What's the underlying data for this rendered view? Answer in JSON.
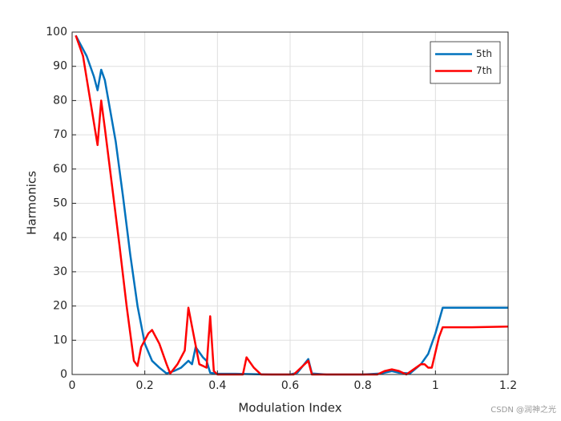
{
  "chart_data": {
    "type": "line",
    "xlabel": "Modulation Index",
    "ylabel": "Harmonics",
    "xlim": [
      0,
      1.2
    ],
    "ylim": [
      0,
      100
    ],
    "xticks": [
      0,
      0.2,
      0.4,
      0.6,
      0.8,
      1,
      1.2
    ],
    "yticks": [
      0,
      10,
      20,
      30,
      40,
      50,
      60,
      70,
      80,
      90,
      100
    ],
    "grid": true,
    "legend_position": "northeast",
    "watermark": "CSDN @润神之光",
    "series": [
      {
        "name": "5th",
        "color": "#0072BD",
        "x": [
          0.01,
          0.02,
          0.04,
          0.06,
          0.07,
          0.08,
          0.09,
          0.1,
          0.12,
          0.14,
          0.16,
          0.18,
          0.2,
          0.22,
          0.24,
          0.26,
          0.28,
          0.3,
          0.32,
          0.33,
          0.34,
          0.36,
          0.37,
          0.38,
          0.4,
          0.45,
          0.5,
          0.55,
          0.6,
          0.62,
          0.65,
          0.66,
          0.7,
          0.8,
          0.85,
          0.88,
          0.9,
          0.93,
          0.96,
          0.98,
          1.0,
          1.02,
          1.05,
          1.1,
          1.2
        ],
        "values": [
          99,
          97,
          93,
          87,
          83,
          89,
          86,
          80,
          68,
          52,
          35,
          20,
          9,
          4,
          2,
          0.3,
          1,
          2,
          4,
          3,
          8,
          5,
          4,
          0.5,
          0.2,
          0.2,
          0.1,
          0,
          0,
          0.5,
          4.5,
          0.3,
          0,
          0,
          0.3,
          1,
          0.5,
          0.3,
          3,
          6,
          12,
          19.5,
          19.5,
          19.5,
          19.5
        ]
      },
      {
        "name": "7th",
        "color": "#FF0000",
        "x": [
          0.01,
          0.03,
          0.05,
          0.07,
          0.08,
          0.09,
          0.11,
          0.13,
          0.15,
          0.17,
          0.18,
          0.19,
          0.21,
          0.22,
          0.24,
          0.26,
          0.27,
          0.29,
          0.31,
          0.32,
          0.33,
          0.35,
          0.37,
          0.38,
          0.39,
          0.4,
          0.47,
          0.48,
          0.5,
          0.52,
          0.61,
          0.65,
          0.66,
          0.84,
          0.86,
          0.88,
          0.9,
          0.92,
          0.96,
          0.97,
          0.98,
          0.99,
          1.01,
          1.02,
          1.1,
          1.2
        ],
        "values": [
          99,
          93,
          80,
          67,
          80,
          72,
          55,
          38,
          20,
          4,
          2.5,
          8,
          12,
          13,
          9,
          3,
          0.3,
          3,
          7,
          19.5,
          14,
          3,
          2,
          17,
          1,
          0,
          0,
          5,
          2,
          0,
          0,
          4,
          0,
          0,
          1,
          1.5,
          1,
          0,
          3,
          3,
          2,
          2,
          11,
          13.8,
          13.8,
          14
        ]
      }
    ]
  }
}
